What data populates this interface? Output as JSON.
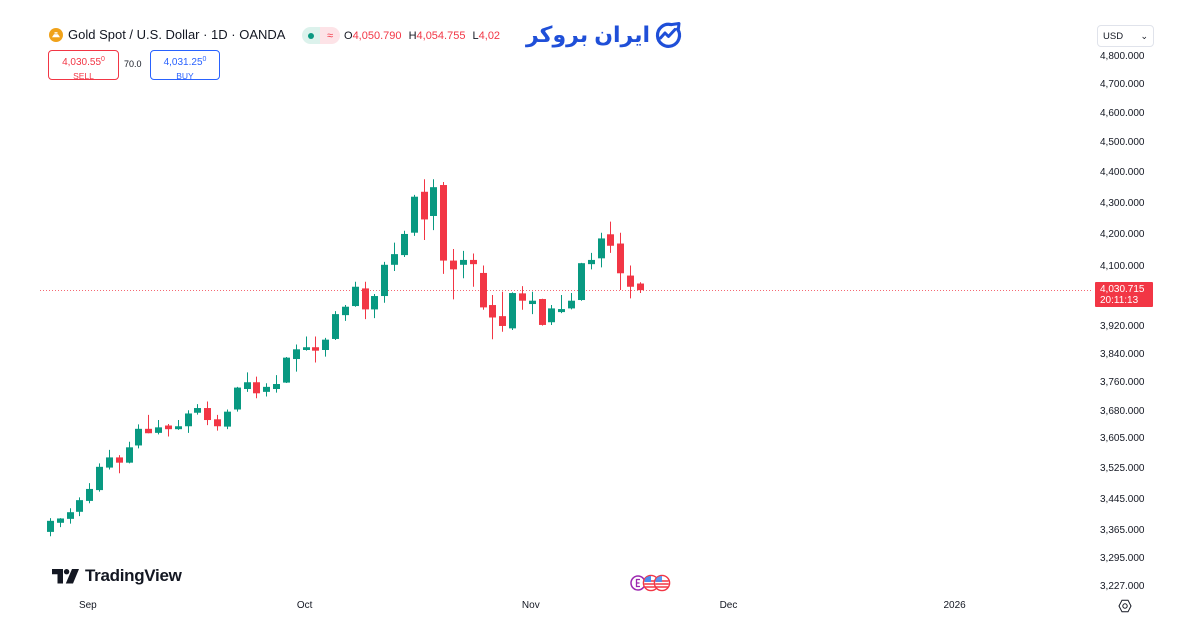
{
  "header": {
    "symbol_icon": "gold-bars-icon",
    "title": "Gold Spot / U.S. Dollar · 1D · OANDA",
    "market_status_icon": "market-open-dot-icon",
    "data_status_glyph": "≈",
    "ohlc": {
      "o_label": "O",
      "o": "4,050.790",
      "h_label": "H",
      "h": "4,054.755",
      "l_label": "L",
      "l": "4,02"
    }
  },
  "trade": {
    "sell_price": "4,030.55",
    "sell_sup": "0",
    "sell_label": "SELL",
    "spread": "70.0",
    "buy_price": "4,031.25",
    "buy_sup": "0",
    "buy_label": "BUY"
  },
  "watermark": {
    "brand_text": "ایران بروکر",
    "brand_icon": "chart-growth-icon"
  },
  "currency_select": {
    "value": "USD",
    "icon": "chevron-down-icon"
  },
  "current_price": {
    "price": "4,030.715",
    "countdown": "20:11:13"
  },
  "footer": {
    "logo_text": "TradingView",
    "logo_icon": "tradingview-icon",
    "event_icons": [
      "economic-event-icon",
      "us-flag-icon",
      "us-flag-icon"
    ],
    "settings_icon": "gear-icon"
  },
  "colors": {
    "up": "#089981",
    "down": "#f23645",
    "buy": "#2962ff",
    "brand": "#1f4fd8",
    "text": "#131722",
    "gold": "#f0a21a"
  },
  "chart_data": {
    "type": "candlestick",
    "title": "Gold Spot / U.S. Dollar · 1D · OANDA",
    "scale": "log",
    "ylim": [
      3227,
      4800
    ],
    "grid": false,
    "legend": "none",
    "last_price": 4030.715,
    "fields": [
      "open",
      "high",
      "low",
      "close"
    ],
    "y_ticks": [
      {
        "value": 4800,
        "label": "4,800.000"
      },
      {
        "value": 4700,
        "label": "4,700.000"
      },
      {
        "value": 4600,
        "label": "4,600.000"
      },
      {
        "value": 4500,
        "label": "4,500.000"
      },
      {
        "value": 4400,
        "label": "4,400.000"
      },
      {
        "value": 4300,
        "label": "4,300.000"
      },
      {
        "value": 4200,
        "label": "4,200.000"
      },
      {
        "value": 4100,
        "label": "4,100.000"
      },
      {
        "value": 3920,
        "label": "3,920.000"
      },
      {
        "value": 3840,
        "label": "3,840.000"
      },
      {
        "value": 3760,
        "label": "3,760.000"
      },
      {
        "value": 3680,
        "label": "3,680.000"
      },
      {
        "value": 3605,
        "label": "3,605.000"
      },
      {
        "value": 3525,
        "label": "3,525.000"
      },
      {
        "value": 3445,
        "label": "3,445.000"
      },
      {
        "value": 3365,
        "label": "3,365.000"
      },
      {
        "value": 3295,
        "label": "3,295.000"
      },
      {
        "value": 3227,
        "label": "3,227.000"
      }
    ],
    "x_ticks": [
      {
        "label": "Sep",
        "index": 3.85
      },
      {
        "label": "Oct",
        "index": 25.9
      },
      {
        "label": "Nov",
        "index": 48.9
      },
      {
        "label": "Dec",
        "index": 69
      },
      {
        "label": "2026",
        "index": 92
      }
    ],
    "candles": [
      [
        3363,
        3398,
        3352,
        3391
      ],
      [
        3386,
        3398,
        3375,
        3397
      ],
      [
        3396,
        3423,
        3384,
        3413
      ],
      [
        3414,
        3451,
        3403,
        3444
      ],
      [
        3442,
        3488,
        3436,
        3473
      ],
      [
        3470,
        3540,
        3466,
        3531
      ],
      [
        3529,
        3576,
        3524,
        3556
      ],
      [
        3556,
        3562,
        3514,
        3542
      ],
      [
        3542,
        3598,
        3540,
        3583
      ],
      [
        3588,
        3645,
        3580,
        3633
      ],
      [
        3633,
        3671,
        3621,
        3621
      ],
      [
        3622,
        3657,
        3618,
        3637
      ],
      [
        3642,
        3646,
        3612,
        3632
      ],
      [
        3632,
        3657,
        3630,
        3640
      ],
      [
        3640,
        3684,
        3622,
        3675
      ],
      [
        3677,
        3701,
        3672,
        3690
      ],
      [
        3690,
        3708,
        3643,
        3657
      ],
      [
        3659,
        3671,
        3628,
        3640
      ],
      [
        3639,
        3686,
        3632,
        3680
      ],
      [
        3686,
        3749,
        3680,
        3747
      ],
      [
        3743,
        3790,
        3735,
        3762
      ],
      [
        3762,
        3778,
        3717,
        3731
      ],
      [
        3735,
        3759,
        3722,
        3749
      ],
      [
        3743,
        3782,
        3733,
        3757
      ],
      [
        3761,
        3834,
        3760,
        3832
      ],
      [
        3828,
        3870,
        3792,
        3856
      ],
      [
        3854,
        3893,
        3852,
        3862
      ],
      [
        3862,
        3893,
        3818,
        3852
      ],
      [
        3854,
        3889,
        3835,
        3884
      ],
      [
        3886,
        3968,
        3883,
        3959
      ],
      [
        3956,
        3986,
        3939,
        3981
      ],
      [
        3983,
        4056,
        3981,
        4041
      ],
      [
        4036,
        4056,
        3944,
        3973
      ],
      [
        3973,
        4019,
        3947,
        4013
      ],
      [
        4013,
        4117,
        3993,
        4108
      ],
      [
        4108,
        4177,
        4089,
        4141
      ],
      [
        4138,
        4214,
        4132,
        4204
      ],
      [
        4208,
        4329,
        4198,
        4323
      ],
      [
        4339,
        4380,
        4185,
        4250
      ],
      [
        4261,
        4380,
        4216,
        4354
      ],
      [
        4361,
        4371,
        4080,
        4121
      ],
      [
        4121,
        4157,
        4003,
        4094
      ],
      [
        4108,
        4151,
        4067,
        4123
      ],
      [
        4123,
        4143,
        4041,
        4110
      ],
      [
        4083,
        4106,
        3972,
        3979
      ],
      [
        3986,
        4016,
        3885,
        3949
      ],
      [
        3953,
        4026,
        3907,
        3924
      ],
      [
        3917,
        4024,
        3912,
        4022
      ],
      [
        4021,
        4043,
        3972,
        3999
      ],
      [
        3989,
        4026,
        3959,
        3999
      ],
      [
        4004,
        4005,
        3925,
        3927
      ],
      [
        3935,
        3986,
        3927,
        3976
      ],
      [
        3965,
        4016,
        3962,
        3974
      ],
      [
        3976,
        4022,
        3973,
        3999
      ],
      [
        4001,
        4114,
        3999,
        4113
      ],
      [
        4110,
        4145,
        4094,
        4123
      ],
      [
        4128,
        4208,
        4100,
        4190
      ],
      [
        4203,
        4243,
        4145,
        4167
      ],
      [
        4174,
        4208,
        4031,
        4082
      ],
      [
        4075,
        4106,
        4006,
        4041
      ],
      [
        4050.79,
        4054.755,
        4022,
        4030.715
      ]
    ]
  }
}
